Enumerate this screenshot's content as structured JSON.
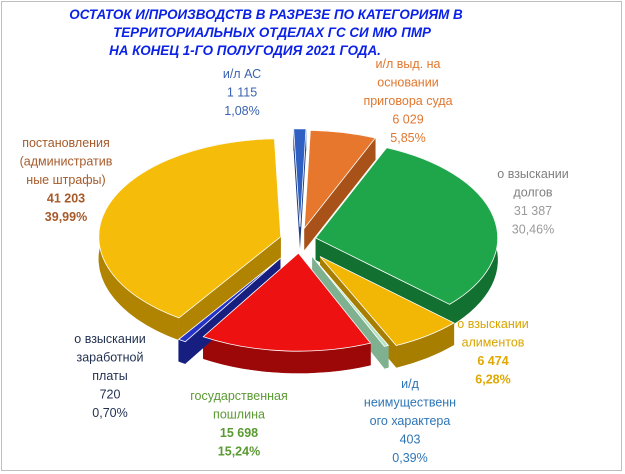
{
  "chart_data": {
    "type": "pie",
    "style": "3d-exploded",
    "title_lines": [
      "ОСТАТОК И/ПРОИЗВОДСТВ В РАЗРЕЗЕ ПО КАТЕГОРИЯМ  В",
      "ТЕРРИТОРИАЛЬНЫХ ОТДЕЛАХ      ГС СИ МЮ  ПМР",
      "НА КОНЕЦ 1-ГО ПОЛУГОДИЯ 2021 ГОДА."
    ],
    "slices": [
      {
        "label_lines": [
          "и/л АС"
        ],
        "value_text": "1 115",
        "percent_text": "1,08%",
        "value": 1115,
        "percent": 1.08,
        "color": "#2e5fc2",
        "side_color": "#1c3d85",
        "label_color": "#3a62b0",
        "value_color": "#3a62b0",
        "value_bold": false
      },
      {
        "label_lines": [
          "и/л выд. на",
          "основании",
          "приговора суда"
        ],
        "value_text": "6 029",
        "percent_text": "5,85%",
        "value": 6029,
        "percent": 5.85,
        "color": "#e8772e",
        "side_color": "#a8521a",
        "label_color": "#e0772e",
        "value_color": "#e0772e",
        "value_bold": false
      },
      {
        "label_lines": [
          "о взыскании",
          "долгов"
        ],
        "value_text": "31 387",
        "percent_text": "30,46%",
        "value": 31387,
        "percent": 30.46,
        "color": "#1fa64a",
        "side_color": "#127030",
        "label_color": "#7f7f7f",
        "value_color": "#9a9a9a",
        "value_bold": false
      },
      {
        "label_lines": [
          "о взыскании",
          "алиментов"
        ],
        "value_text": "6 474",
        "percent_text": "6,28%",
        "value": 6474,
        "percent": 6.28,
        "color": "#f2b705",
        "side_color": "#a87e00",
        "label_color": "#d9a400",
        "value_color": "#e0a800",
        "value_bold": true
      },
      {
        "label_lines": [
          "и/д",
          "неимущественн",
          "ого характера"
        ],
        "value_text": "403",
        "percent_text": "0,39%",
        "value": 403,
        "percent": 0.39,
        "color": "#b6e3c4",
        "side_color": "#7fb08f",
        "label_color": "#2e75b6",
        "value_color": "#2e75b6",
        "value_bold": false
      },
      {
        "label_lines": [
          "государственная",
          "пошлина"
        ],
        "value_text": "15 698",
        "percent_text": "15,24%",
        "value": 15698,
        "percent": 15.24,
        "color": "#ee1111",
        "side_color": "#9c0808",
        "label_color": "#5a9a32",
        "value_color": "#5a9a32",
        "value_bold": true
      },
      {
        "label_lines": [
          "о взыскании",
          "заработной",
          "платы"
        ],
        "value_text": "720",
        "percent_text": "0,70%",
        "value": 720,
        "percent": 0.7,
        "color": "#2432c8",
        "side_color": "#161f80",
        "label_color": "#1f2f50",
        "value_color": "#1f2f50",
        "value_bold": false
      },
      {
        "label_lines": [
          "постановления",
          "(административ",
          "ные штрафы)"
        ],
        "value_text": "41 203",
        "percent_text": "39,99%",
        "value": 41203,
        "percent": 39.99,
        "color": "#f5bd0a",
        "side_color": "#b08300",
        "label_color": "#a65a2a",
        "value_color": "#a65a2a",
        "value_bold": true
      }
    ]
  }
}
